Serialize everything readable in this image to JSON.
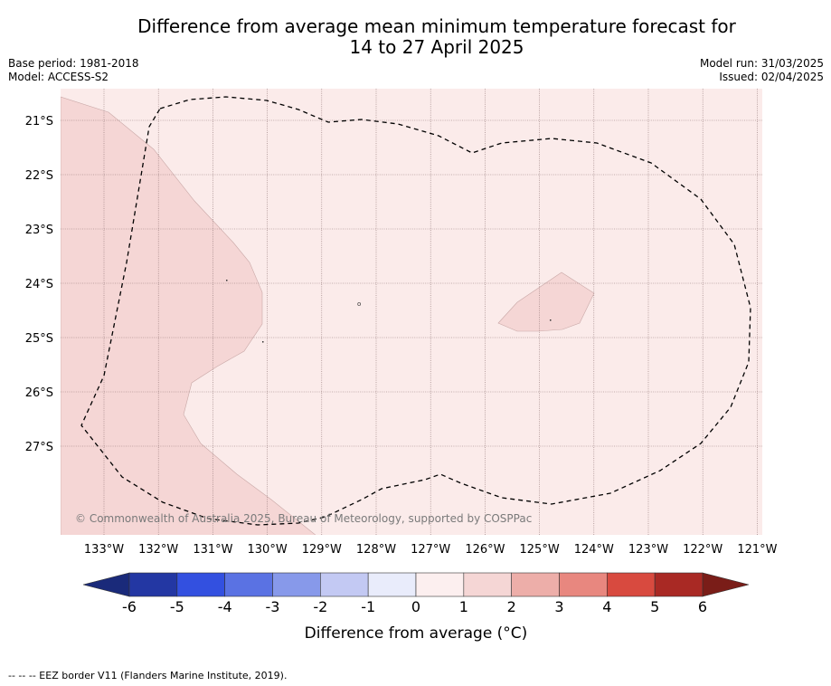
{
  "title": {
    "line1": "Difference from average mean minimum temperature forecast for",
    "line2": "14 to 27 April 2025"
  },
  "meta_left": {
    "base_period": "Base period: 1981-2018",
    "model": "Model: ACCESS-S2"
  },
  "meta_right": {
    "model_run": "Model run: 31/03/2025",
    "issued": "Issued: 02/04/2025"
  },
  "map": {
    "lat_labels": [
      "21°S",
      "22°S",
      "23°S",
      "24°S",
      "25°S",
      "26°S",
      "27°S"
    ],
    "lon_labels": [
      "133°W",
      "132°W",
      "131°W",
      "130°W",
      "129°W",
      "128°W",
      "127°W",
      "126°W",
      "125°W",
      "124°W",
      "123°W",
      "122°W",
      "121°W"
    ],
    "background_color": "#fbebea",
    "anomaly_color": "#f5d6d5",
    "copyright": "© Commonwealth of Australia 2025, Bureau of Meteorology, supported by COSPPac"
  },
  "colorbar": {
    "ticks": [
      "-6",
      "-5",
      "-4",
      "-3",
      "-2",
      "-1",
      "0",
      "1",
      "2",
      "3",
      "4",
      "5",
      "6"
    ],
    "colors": [
      "#2337a3",
      "#3350e0",
      "#5a72e3",
      "#8799ea",
      "#c3c9f3",
      "#e9ecfb",
      "#fcefef",
      "#f5d6d5",
      "#edaea9",
      "#e8877f",
      "#d84a3f",
      "#a92924"
    ],
    "under_color": "#1a2a7a",
    "over_color": "#7a1d18",
    "label": "Difference from average (°C)"
  },
  "footer": "--  --  -- EEZ border V11 (Flanders Marine Institute, 2019)."
}
